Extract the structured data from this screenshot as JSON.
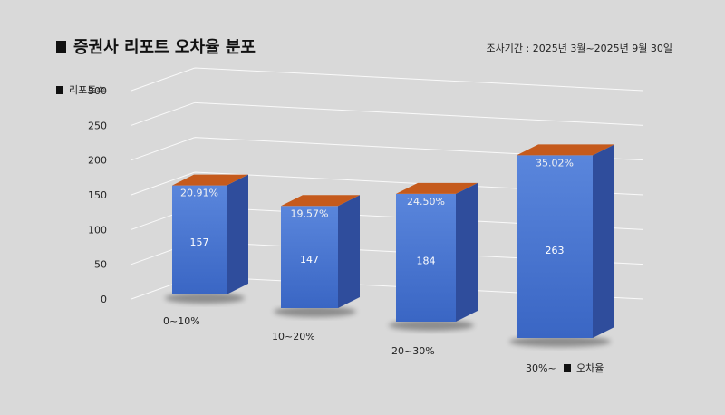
{
  "header": {
    "title": "증권사 리포트 오차율 분포",
    "period": "조사기간 : 2025년 3월~2025년 9월 30일"
  },
  "chart_data": {
    "type": "bar",
    "style": "3d-column",
    "title": "증권사 리포트 오차율 분포",
    "ylabel": "리포트수",
    "xlabel": "오차율",
    "categories": [
      "0~10%",
      "10~20%",
      "20~30%",
      "30%~"
    ],
    "values": [
      157,
      147,
      184,
      263
    ],
    "shares": [
      "20.91%",
      "19.57%",
      "24.50%",
      "35.02%"
    ],
    "yticks": [
      0,
      50,
      100,
      150,
      200,
      250,
      300
    ],
    "ylim": [
      0,
      300
    ],
    "grid": true,
    "colors": {
      "front": "#4a78d4",
      "side": "#2f4d9c",
      "top": "#c55a1c",
      "grid": "#ffffff"
    }
  }
}
